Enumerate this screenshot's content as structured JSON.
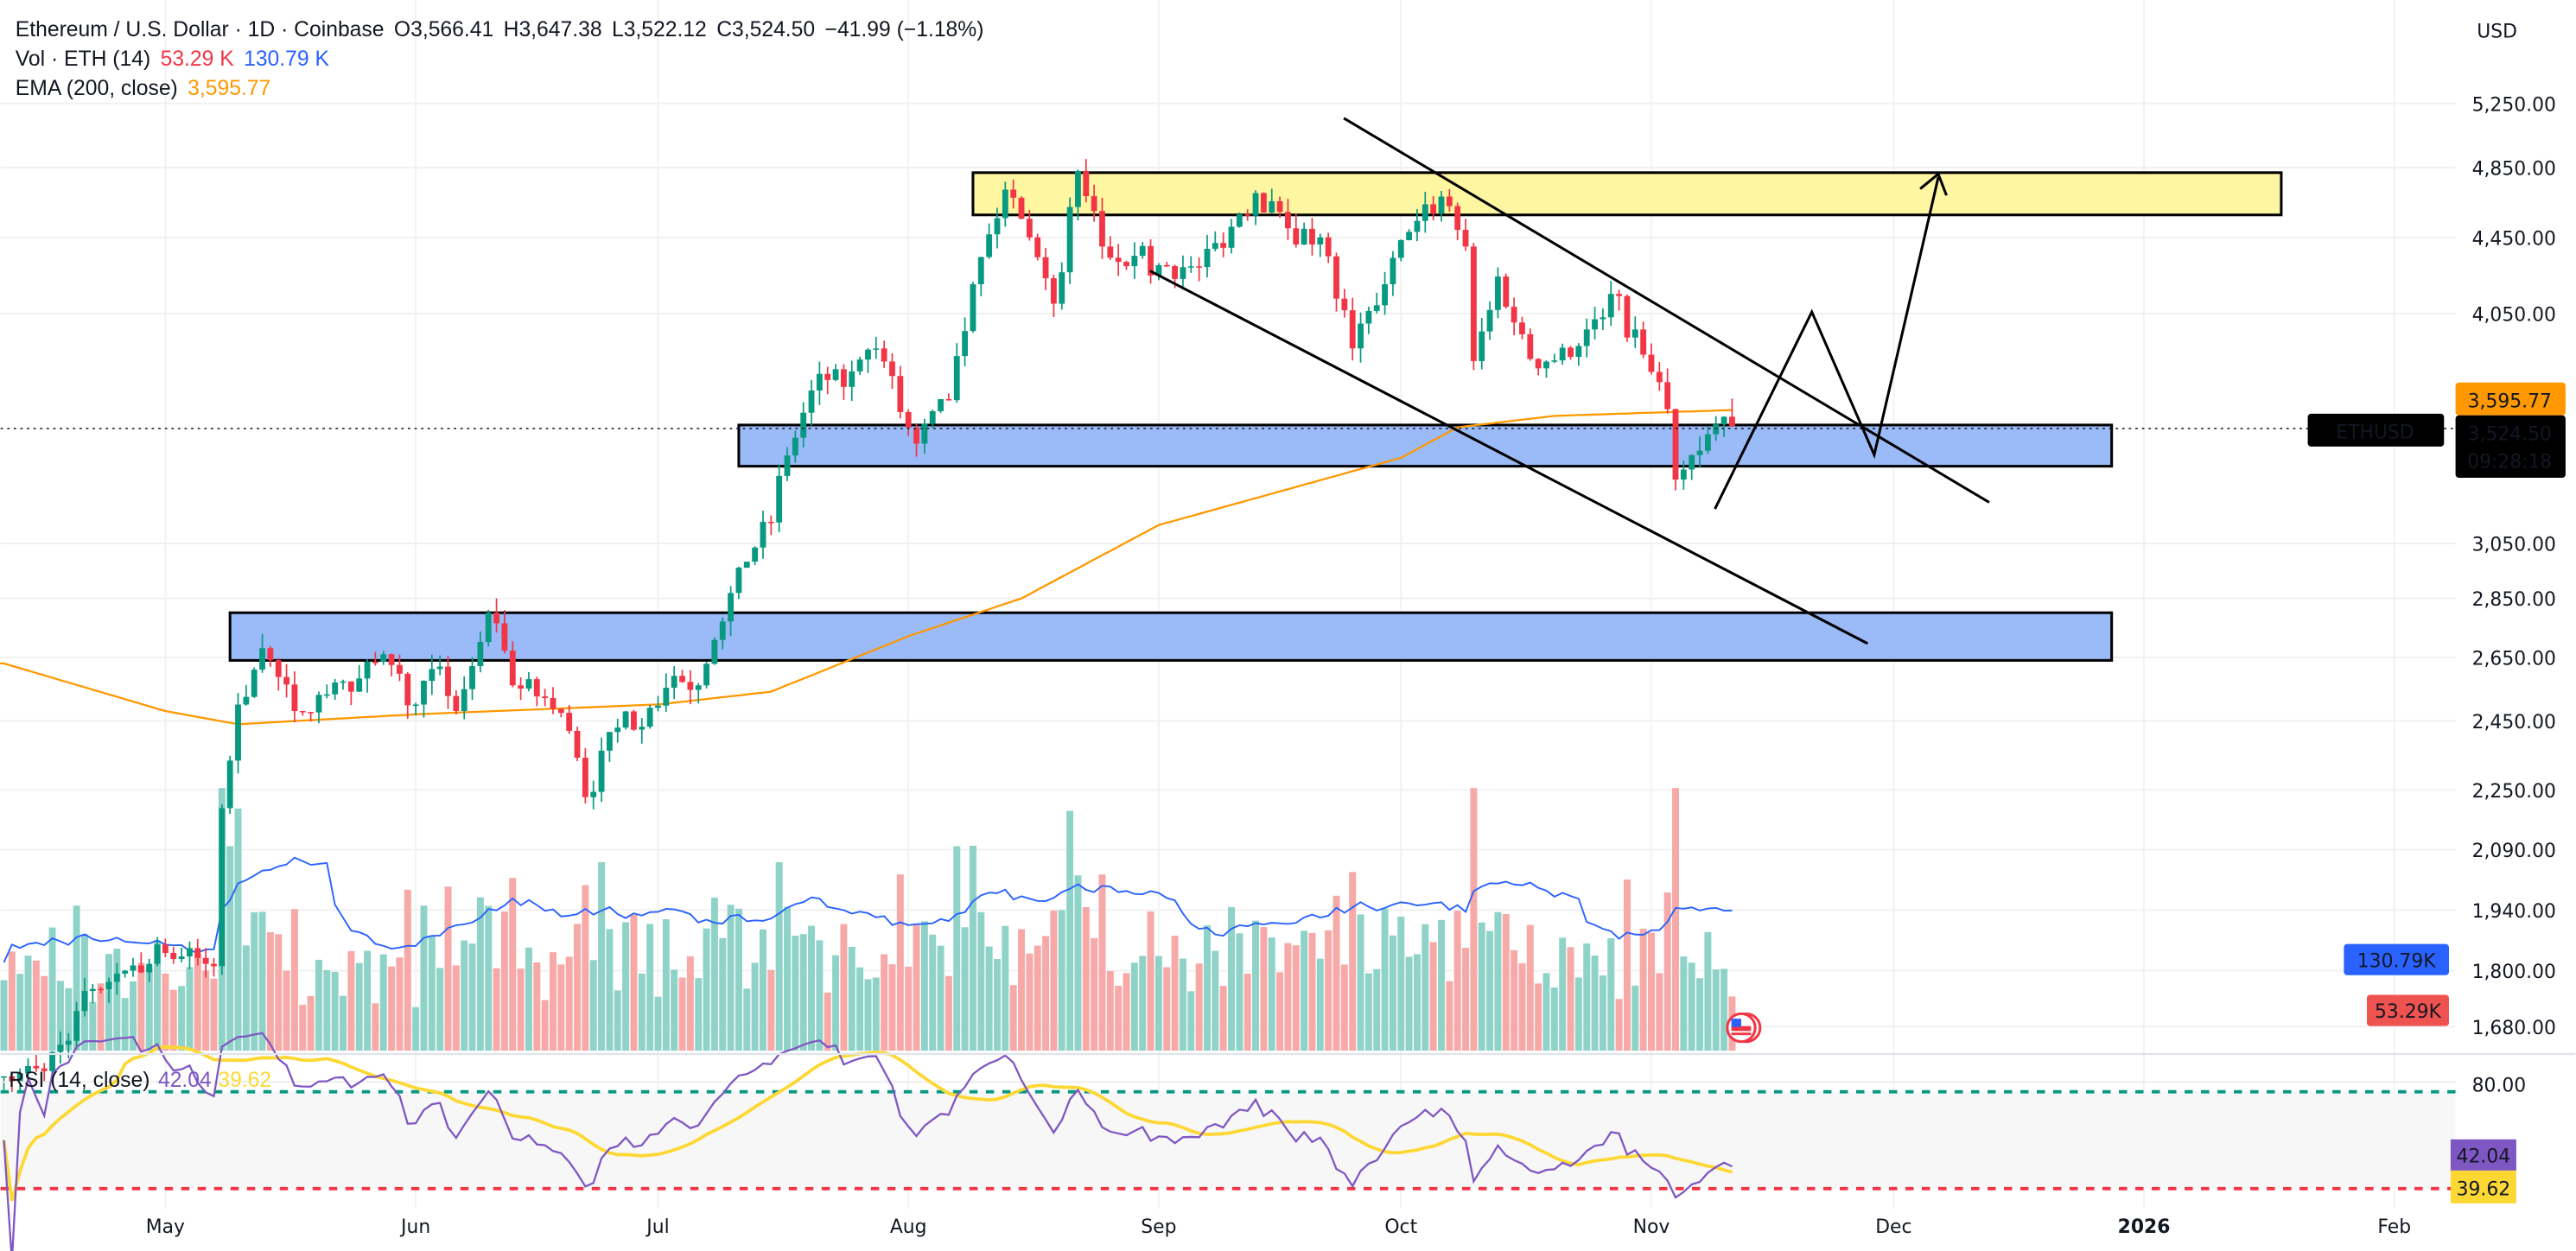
{
  "header": {
    "symbol_title": "Ethereum / U.S. Dollar · 1D · Coinbase",
    "open": "O3,566.41",
    "high": "H3,647.38",
    "low": "L3,522.12",
    "close": "C3,524.50",
    "change": "−41.99 (−1.18%)",
    "vol_label": "Vol · ETH (14)",
    "vol_value": "53.29 K",
    "vol_sma_value": "130.79 K",
    "ema_label": "EMA (200, close)",
    "ema_value": "3,595.77",
    "currency": "USD"
  },
  "price_axis": {
    "scale": "log",
    "ticks": [
      "5,250.00",
      "4,850.00",
      "4,450.00",
      "4,050.00",
      "3,050.00",
      "2,850.00",
      "2,650.00",
      "2,450.00",
      "2,250.00",
      "2,090.00",
      "1,940.00",
      "1,800.00",
      "1,680.00"
    ],
    "tick_values": [
      5250,
      4850,
      4450,
      4050,
      3050,
      2850,
      2650,
      2450,
      2250,
      2090,
      1940,
      1800,
      1680
    ],
    "ema_badge": "3,595.77",
    "last_price_badge": "3,524.50",
    "countdown": "09:28:18",
    "symbol_badge": "ETHUSD",
    "vol_sma_badge": "130.79K",
    "vol_badge": "53.29K"
  },
  "rsi": {
    "label": "RSI (14, close)",
    "value": "42.04",
    "sma_value": "39.62",
    "axis_tick": "80.00",
    "upper_band": 70,
    "lower_band": 30,
    "badge_value": "42.04",
    "badge_sma": "39.62"
  },
  "time_axis": {
    "labels": [
      {
        "text": "May",
        "date": "2025-05-01",
        "bold": false
      },
      {
        "text": "Jun",
        "date": "2025-06-01",
        "bold": false
      },
      {
        "text": "Jul",
        "date": "2025-07-01",
        "bold": false
      },
      {
        "text": "Aug",
        "date": "2025-08-01",
        "bold": false
      },
      {
        "text": "Sep",
        "date": "2025-09-01",
        "bold": false
      },
      {
        "text": "Oct",
        "date": "2025-10-01",
        "bold": false
      },
      {
        "text": "Nov",
        "date": "2025-11-01",
        "bold": false
      },
      {
        "text": "Dec",
        "date": "2025-12-01",
        "bold": false
      },
      {
        "text": "2026",
        "date": "2026-01-01",
        "bold": true
      },
      {
        "text": "Feb",
        "date": "2026-02-01",
        "bold": false
      }
    ]
  },
  "colors": {
    "up": "#089981",
    "down": "#f23645",
    "ema": "#ff9800",
    "vol_sma": "#2962ff",
    "rsi": "#7e57c2",
    "rsi_sma": "#fdd835",
    "zone_blue": "#8fb3f7",
    "zone_yellow": "#fff59d"
  },
  "chart_data": {
    "type": "candlestick",
    "title": "Ethereum / U.S. Dollar · 1D · Coinbase",
    "y_scale": "log",
    "ylim": [
      1600,
      5400
    ],
    "grid": true,
    "approximate_closes": [
      [
        "2025-04-11",
        1580
      ],
      [
        "2025-04-16",
        1590
      ],
      [
        "2025-04-22",
        1760
      ],
      [
        "2025-04-26",
        1800
      ],
      [
        "2025-05-01",
        1840
      ],
      [
        "2025-05-07",
        1810
      ],
      [
        "2025-05-08",
        2200
      ],
      [
        "2025-05-10",
        2500
      ],
      [
        "2025-05-13",
        2680
      ],
      [
        "2025-05-17",
        2480
      ],
      [
        "2025-05-20",
        2530
      ],
      [
        "2025-05-24",
        2540
      ],
      [
        "2025-05-28",
        2660
      ],
      [
        "2025-06-01",
        2500
      ],
      [
        "2025-06-04",
        2620
      ],
      [
        "2025-06-06",
        2480
      ],
      [
        "2025-06-10",
        2800
      ],
      [
        "2025-06-13",
        2560
      ],
      [
        "2025-06-17",
        2520
      ],
      [
        "2025-06-20",
        2420
      ],
      [
        "2025-06-22",
        2230
      ],
      [
        "2025-06-26",
        2430
      ],
      [
        "2025-06-30",
        2490
      ],
      [
        "2025-07-03",
        2590
      ],
      [
        "2025-07-06",
        2560
      ],
      [
        "2025-07-09",
        2770
      ],
      [
        "2025-07-11",
        2960
      ],
      [
        "2025-07-15",
        3130
      ],
      [
        "2025-07-17",
        3400
      ],
      [
        "2025-07-21",
        3760
      ],
      [
        "2025-07-24",
        3700
      ],
      [
        "2025-07-28",
        3880
      ],
      [
        "2025-08-02",
        3450
      ],
      [
        "2025-08-06",
        3640
      ],
      [
        "2025-08-09",
        4200
      ],
      [
        "2025-08-13",
        4720
      ],
      [
        "2025-08-16",
        4450
      ],
      [
        "2025-08-19",
        4100
      ],
      [
        "2025-08-22",
        4830
      ],
      [
        "2025-08-25",
        4400
      ],
      [
        "2025-08-29",
        4350
      ],
      [
        "2025-09-01",
        4300
      ],
      [
        "2025-09-06",
        4290
      ],
      [
        "2025-09-13",
        4700
      ],
      [
        "2025-09-17",
        4500
      ],
      [
        "2025-09-21",
        4450
      ],
      [
        "2025-09-25",
        3880
      ],
      [
        "2025-09-29",
        4200
      ],
      [
        "2025-10-02",
        4480
      ],
      [
        "2025-10-06",
        4680
      ],
      [
        "2025-10-09",
        4400
      ],
      [
        "2025-10-10",
        3820
      ],
      [
        "2025-10-13",
        4240
      ],
      [
        "2025-10-17",
        3830
      ],
      [
        "2025-10-22",
        3840
      ],
      [
        "2025-10-27",
        4150
      ],
      [
        "2025-10-31",
        3850
      ],
      [
        "2025-11-03",
        3600
      ],
      [
        "2025-11-04",
        3300
      ],
      [
        "2025-11-07",
        3420
      ],
      [
        "2025-11-10",
        3566.41
      ]
    ],
    "last_candle": {
      "date": "2025-11-11",
      "open": 3566.41,
      "high": 3647.38,
      "low": 3522.12,
      "close": 3524.5
    },
    "ema_200": [
      [
        "2025-04-11",
        2630
      ],
      [
        "2025-05-01",
        2480
      ],
      [
        "2025-05-10",
        2440
      ],
      [
        "2025-06-01",
        2470
      ],
      [
        "2025-07-01",
        2500
      ],
      [
        "2025-07-15",
        2540
      ],
      [
        "2025-08-01",
        2720
      ],
      [
        "2025-08-15",
        2850
      ],
      [
        "2025-09-01",
        3120
      ],
      [
        "2025-10-01",
        3390
      ],
      [
        "2025-10-08",
        3520
      ],
      [
        "2025-10-20",
        3570
      ],
      [
        "2025-11-11",
        3595.77
      ]
    ],
    "zones": [
      {
        "name": "resistance",
        "from": "2025-08-09",
        "to": "2026-01-18",
        "low": 4575,
        "high": 4820,
        "color": "#fff59d"
      },
      {
        "name": "support-upper",
        "from": "2025-07-11",
        "to": "2025-12-28",
        "low": 3355,
        "high": 3530,
        "color": "#8fb3f7"
      },
      {
        "name": "support-lower",
        "from": "2025-05-09",
        "to": "2025-12-28",
        "low": 2640,
        "high": 2800,
        "color": "#8fb3f7"
      }
    ]
  }
}
